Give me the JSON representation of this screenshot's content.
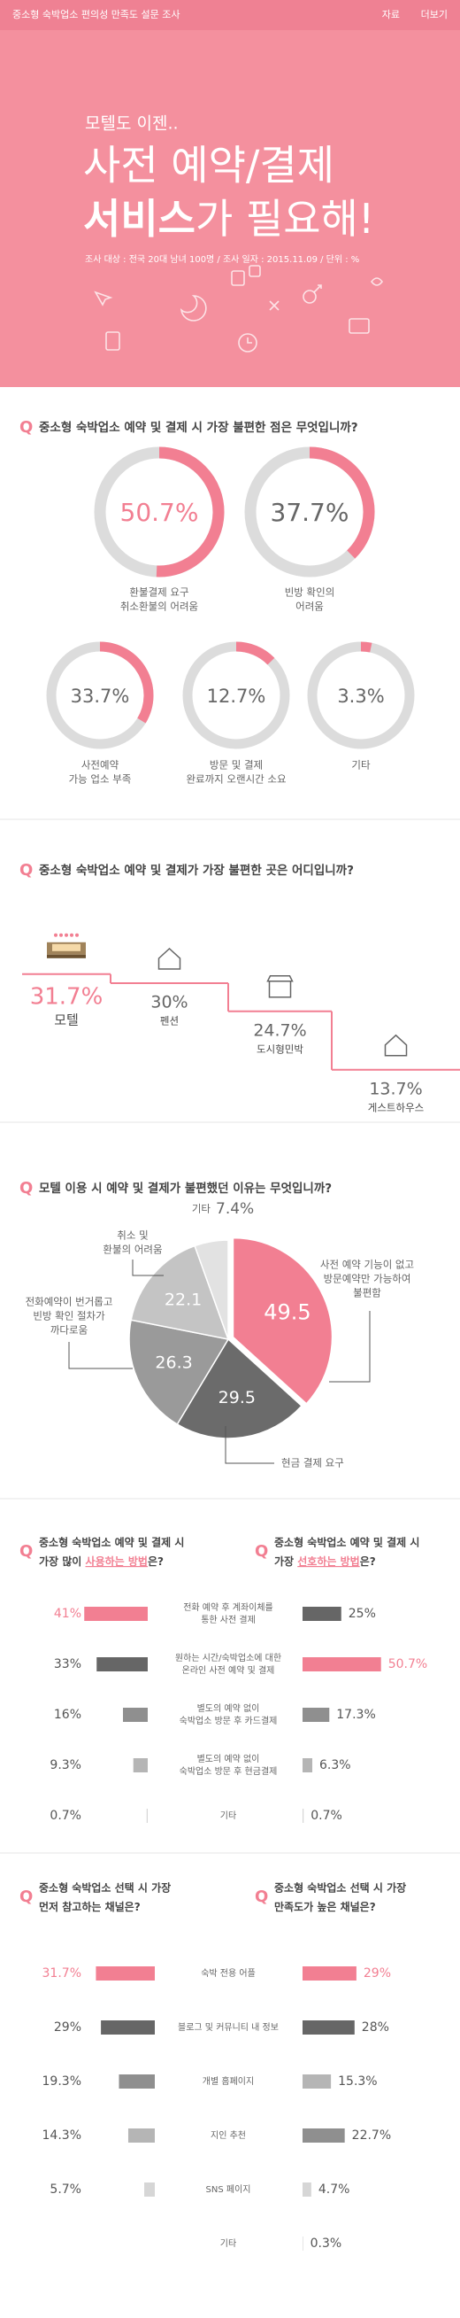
{
  "question_mark": "Q",
  "header": {
    "topbar": "중소형 숙박업소 편의성 만족도 설문 조사",
    "links": [
      "자료",
      "더보기"
    ],
    "kicker": "모텔도 이젠..",
    "headline": "사전 예약/결제",
    "headline2_bold": "서비스",
    "headline2_rest": "가 필요해!",
    "meta": "조사 대상 : 전국 20대 남녀 100명 / 조사 일자 : 2015.11.09 / 단위 : %"
  },
  "chart_data": [
    {
      "type": "donut",
      "title": "중소형 숙박업소 예약 및 결제 시 가장 불편한 점은 무엇입니까?",
      "categories": [
        [
          "환불결제 요구",
          "취소환불의 어려움"
        ],
        [
          "빈방 확인의",
          "어려움"
        ],
        [
          "사전예약",
          "가능 업소 부족"
        ],
        [
          "방문 및 결제",
          "완료까지 오랜시간 소요"
        ],
        [
          "기타"
        ]
      ],
      "values": [
        50.7,
        37.7,
        33.7,
        12.7,
        3.3
      ],
      "value_labels": [
        "50.7%",
        "37.7%",
        "33.7%",
        "12.7%",
        "3.3%"
      ],
      "color": "#f27f92",
      "track_color": "#dcdcdc",
      "highlight": 0
    },
    {
      "type": "step",
      "title": "중소형 숙박업소 예약 및 결제가 가장 불편한 곳은 어디입니까?",
      "categories": [
        "모텔",
        "펜션",
        "도시형민박",
        "게스트하우스"
      ],
      "values": [
        31.7,
        30,
        24.7,
        13.7
      ],
      "value_labels": [
        "31.7%",
        "30%",
        "24.7%",
        "13.7%"
      ],
      "color": "#f27f92",
      "highlight": 0
    },
    {
      "type": "pie",
      "title": "모텔 이용 시 예약 및 결제가 불편했던 이유는 무엇입니까?",
      "categories": [
        [
          "사전 예약 기능이 없고",
          "방문예약만 가능하여",
          "불편함"
        ],
        [
          "현금 결제 요구"
        ],
        [
          "전화예약이 번거롭고",
          "빈방 확인 절차가",
          "까다로움"
        ],
        [
          "취소 및",
          "환불의 어려움"
        ],
        [
          "기타"
        ]
      ],
      "values": [
        49.5,
        29.5,
        26.3,
        22.1,
        7.4
      ],
      "value_labels": [
        "49.5",
        "29.5",
        "26.3",
        "22.1",
        "7.4%"
      ],
      "colors": [
        "#f27f92",
        "#6b6b6b",
        "#9a9a9a",
        "#c4c4c4",
        "#e2e2e2"
      ]
    },
    {
      "type": "butterfly",
      "categories": [
        [
          "전화 예약 후 계좌이체를",
          "통한 사전 결제"
        ],
        [
          "원하는 시간/숙박업소에 대한",
          "온라인 사전 예약 및 결제"
        ],
        [
          "별도의 예약 없이",
          "숙박업소 방문 후 카드결제"
        ],
        [
          "별도의 예약 없이",
          "숙박업소 방문 후 현금결제"
        ],
        [
          "기타"
        ]
      ],
      "series": [
        {
          "title": {
            "line1": "중소형 숙박업소 예약 및 결제 시",
            "pre": "가장 많이 ",
            "em": "사용하는 방법",
            "post": "은?"
          },
          "values": [
            41,
            33,
            16,
            9.3,
            0.7
          ],
          "value_labels": [
            "41%",
            "33%",
            "16%",
            "9.3%",
            "0.7%"
          ],
          "colors": [
            "#f27f92",
            "#666666",
            "#8f8f8f",
            "#b5b5b5",
            "#d6d6d6"
          ]
        },
        {
          "title": {
            "line1": "중소형 숙박업소 예약 및 결제 시",
            "pre": "가장 ",
            "em": "선호하는 방법",
            "post": "은?"
          },
          "values": [
            25,
            50.7,
            17.3,
            6.3,
            0.7
          ],
          "value_labels": [
            "25%",
            "50.7%",
            "17.3%",
            "6.3%",
            "0.7%"
          ],
          "colors": [
            "#666666",
            "#f27f92",
            "#8f8f8f",
            "#b5b5b5",
            "#d6d6d6"
          ]
        }
      ],
      "highlight_color": "#f27f92"
    },
    {
      "type": "butterfly",
      "categories": [
        [
          "숙박 전용 어플"
        ],
        [
          "블로그 및 커뮤니티 내 정보"
        ],
        [
          "개별 홈페이지"
        ],
        [
          "지인 추천"
        ],
        [
          "SNS 페이지"
        ],
        [
          "기타"
        ]
      ],
      "series": [
        {
          "title": {
            "line1": "중소형 숙박업소 선택 시 가장",
            "pre": "먼저 참고하는 채널은?",
            "em": "",
            "post": ""
          },
          "values": [
            31.7,
            29,
            19.3,
            14.3,
            5.7,
            null
          ],
          "value_labels": [
            "31.7%",
            "29%",
            "19.3%",
            "14.3%",
            "5.7%",
            null
          ],
          "colors": [
            "#f27f92",
            "#666666",
            "#8f8f8f",
            "#b5b5b5",
            "#d6d6d6",
            "#d6d6d6"
          ]
        },
        {
          "title": {
            "line1": "중소형 숙박업소 선택 시 가장",
            "pre": "만족도가 높은 채널은?",
            "em": "",
            "post": ""
          },
          "values": [
            29,
            28,
            15.3,
            22.7,
            4.7,
            0.3
          ],
          "value_labels": [
            "29%",
            "28%",
            "15.3%",
            "22.7%",
            "4.7%",
            "0.3%"
          ],
          "colors": [
            "#f27f92",
            "#666666",
            "#b5b5b5",
            "#8f8f8f",
            "#d6d6d6",
            "#d6d6d6"
          ]
        }
      ],
      "highlight_color": "#f27f92"
    }
  ]
}
